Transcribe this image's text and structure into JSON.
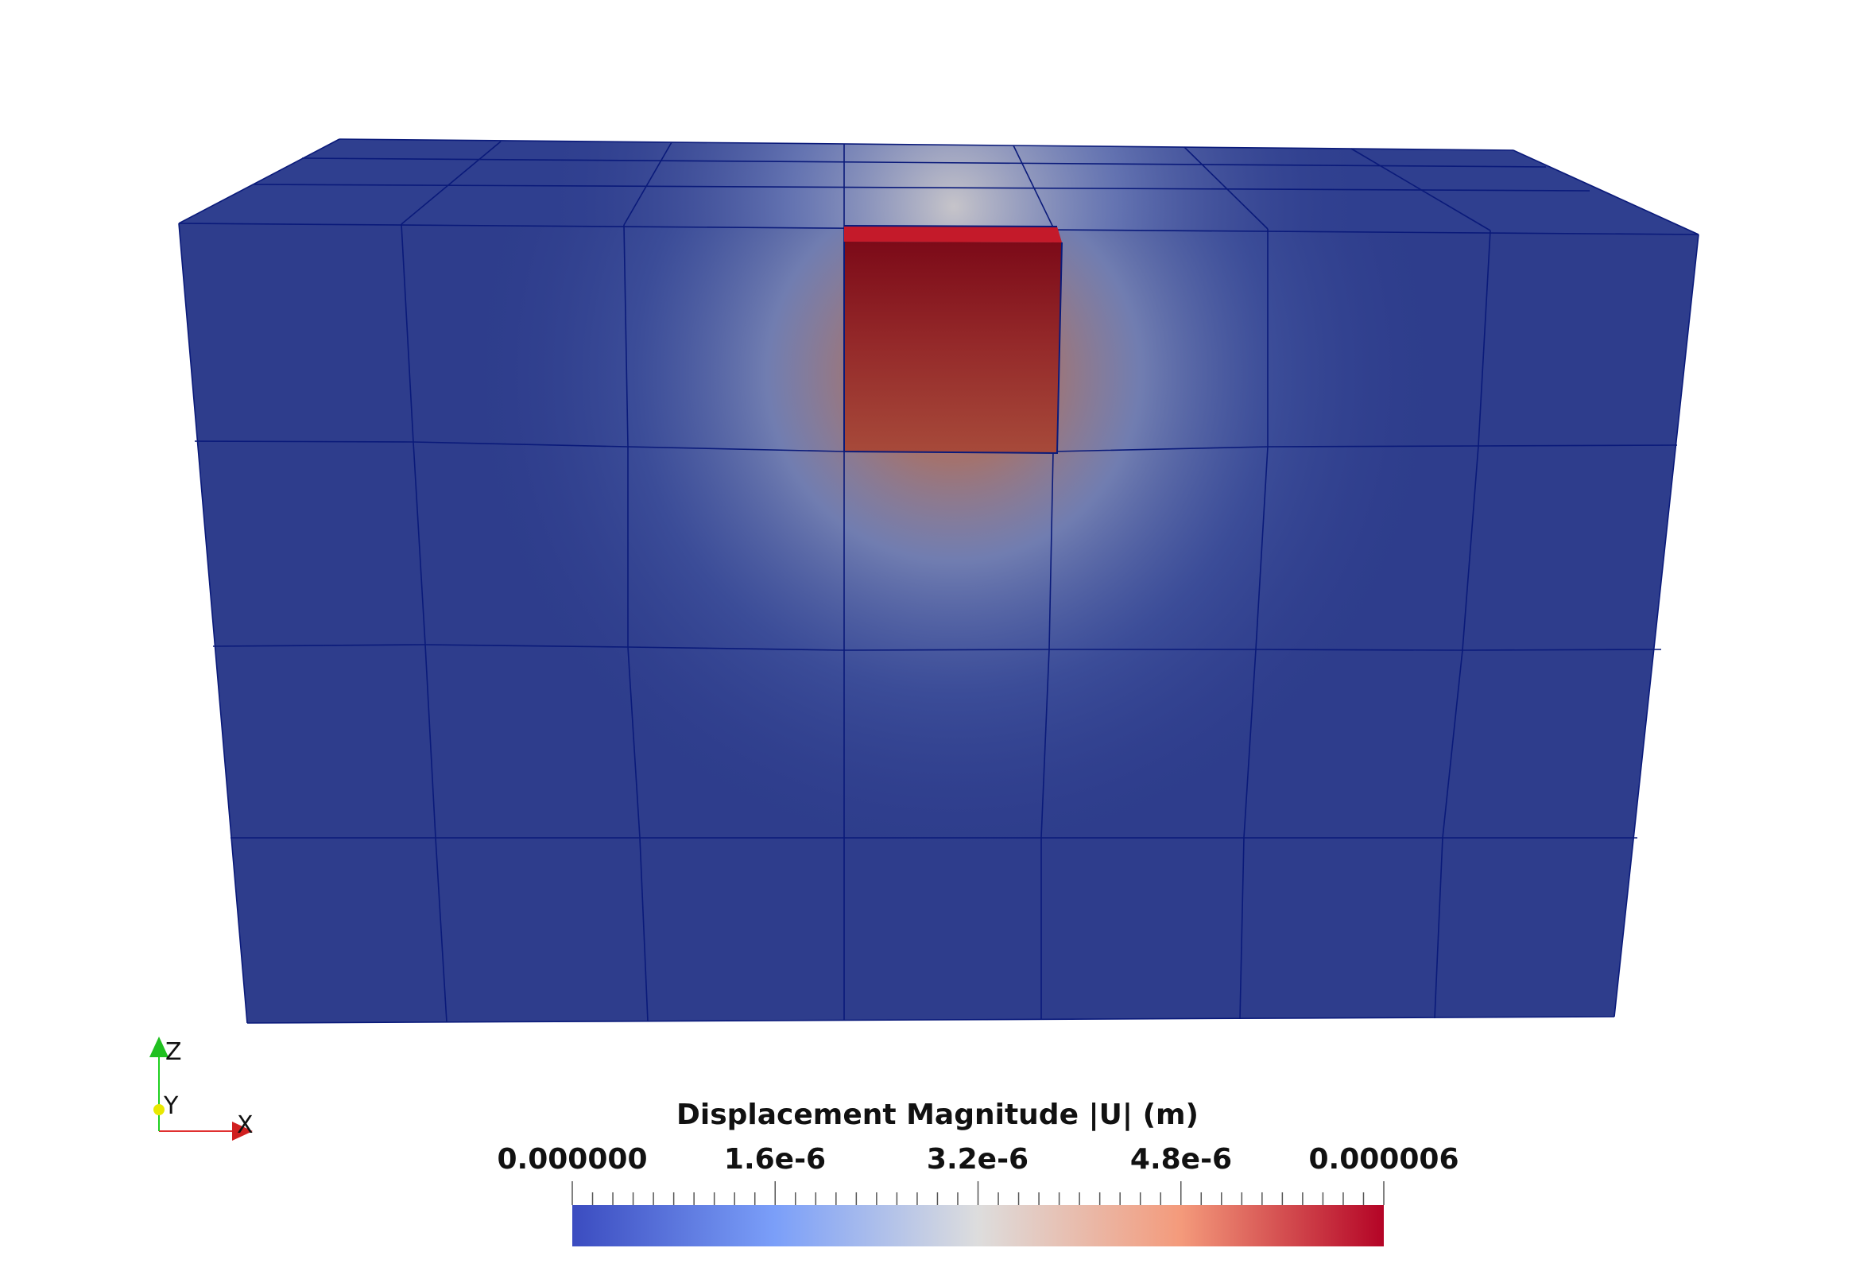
{
  "colorbar": {
    "title": "Displacement Magnitude |U| (m)",
    "tick_labels": [
      "0.000000",
      "1.6e-6",
      "3.2e-6",
      "4.8e-6",
      "0.000006"
    ],
    "range": [
      0,
      6e-06
    ],
    "colormap": "Cool to Warm",
    "low_color": "#3b4cc0",
    "mid_color": "#dddddd",
    "high_color": "#b40426"
  },
  "axes": {
    "x": "X",
    "y": "Y",
    "z": "Z"
  },
  "mesh": {
    "face_color": "#2e3d8c",
    "edge_color": "#0a1a7a"
  }
}
